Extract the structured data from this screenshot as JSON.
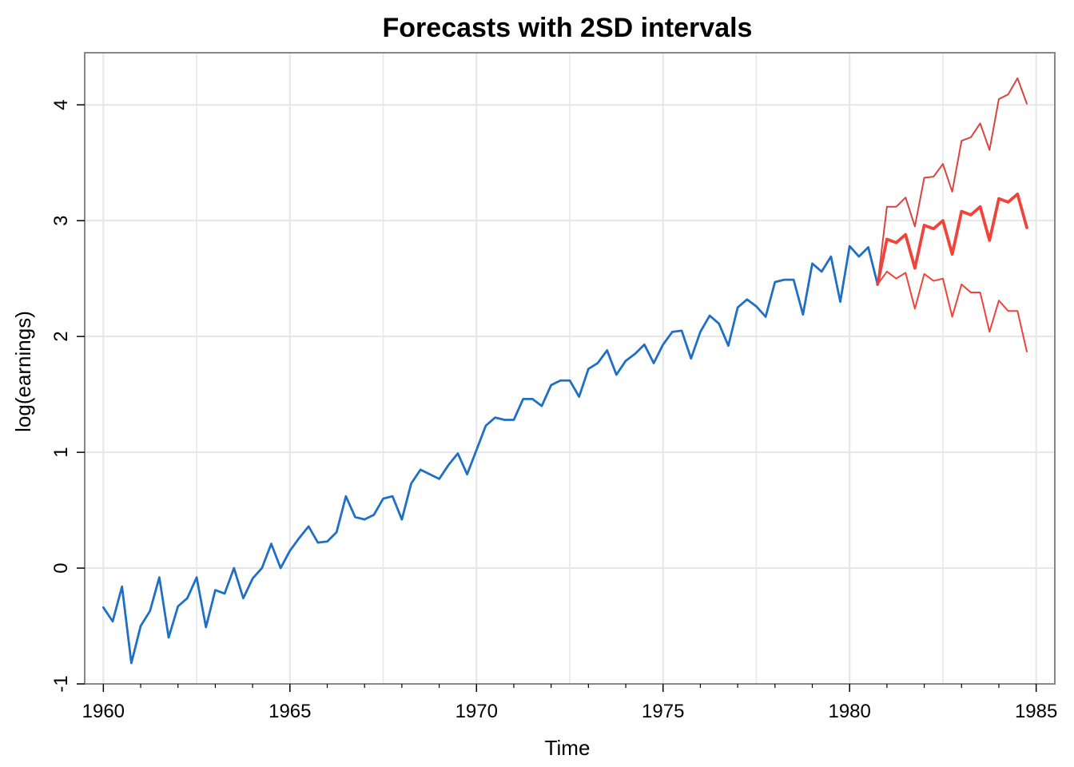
{
  "chart_data": {
    "type": "line",
    "title": "Forecasts with 2SD intervals",
    "xlabel": "Time",
    "ylabel": "log(earnings)",
    "xlim": [
      1959.5,
      1985.5
    ],
    "ylim": [
      -1,
      4.45
    ],
    "x_ticks": [
      1960,
      1965,
      1970,
      1975,
      1980,
      1985
    ],
    "x_tick_labels": [
      "1960",
      "1965",
      "1970",
      "1975",
      "1980",
      "1985"
    ],
    "y_ticks": [
      -1,
      0,
      1,
      2,
      3,
      4
    ],
    "y_tick_labels": [
      "-1",
      "0",
      "1",
      "2",
      "3",
      "4"
    ],
    "grid": true,
    "colors": {
      "observed": "#1f6fc5",
      "forecast": "#f0443a",
      "upper": "#d94440",
      "lower": "#f0443a",
      "grid": "#e6e6e6",
      "frame": "#888888"
    },
    "series": [
      {
        "x_start": 1960.0,
        "x_step": 0.25,
        "values": [
          -0.34,
          -0.46,
          -0.16,
          -0.82,
          -0.5,
          -0.37,
          -0.08,
          -0.6,
          -0.33,
          -0.26,
          -0.08,
          -0.51,
          -0.19,
          -0.22,
          0.0,
          -0.26,
          -0.09,
          0.0,
          0.21,
          0.0,
          0.15,
          0.26,
          0.36,
          0.22,
          0.23,
          0.31,
          0.62,
          0.44,
          0.42,
          0.46,
          0.6,
          0.62,
          0.42,
          0.73,
          0.85,
          0.81,
          0.77,
          0.89,
          0.99,
          0.81,
          1.02,
          1.23,
          1.3,
          1.28,
          1.28,
          1.46,
          1.46,
          1.4,
          1.58,
          1.62,
          1.62,
          1.48,
          1.72,
          1.77,
          1.88,
          1.67,
          1.79,
          1.85,
          1.93,
          1.77,
          1.93,
          2.04,
          2.05,
          1.81,
          2.04,
          2.18,
          2.11,
          1.92,
          2.25,
          2.32,
          2.26,
          2.17,
          2.47,
          2.49,
          2.49,
          2.19,
          2.63,
          2.56,
          2.69,
          2.3,
          2.78,
          2.69,
          2.77,
          2.45
        ]
      },
      {
        "x_start": 1980.75,
        "x_step": 0.25,
        "values": [
          2.45,
          2.84,
          2.81,
          2.88,
          2.59,
          2.96,
          2.93,
          3.0,
          2.71,
          3.08,
          3.05,
          3.12,
          2.83,
          3.19,
          3.16,
          3.23,
          2.94
        ]
      },
      {
        "x_start": 1980.75,
        "x_step": 0.25,
        "values": [
          2.45,
          3.12,
          3.12,
          3.2,
          2.95,
          3.37,
          3.38,
          3.49,
          3.25,
          3.69,
          3.72,
          3.84,
          3.61,
          4.05,
          4.09,
          4.23,
          4.01
        ]
      },
      {
        "x_start": 1980.75,
        "x_step": 0.25,
        "values": [
          2.45,
          2.56,
          2.5,
          2.55,
          2.24,
          2.54,
          2.48,
          2.5,
          2.17,
          2.45,
          2.38,
          2.38,
          2.04,
          2.31,
          2.22,
          2.22,
          1.87
        ]
      }
    ]
  }
}
